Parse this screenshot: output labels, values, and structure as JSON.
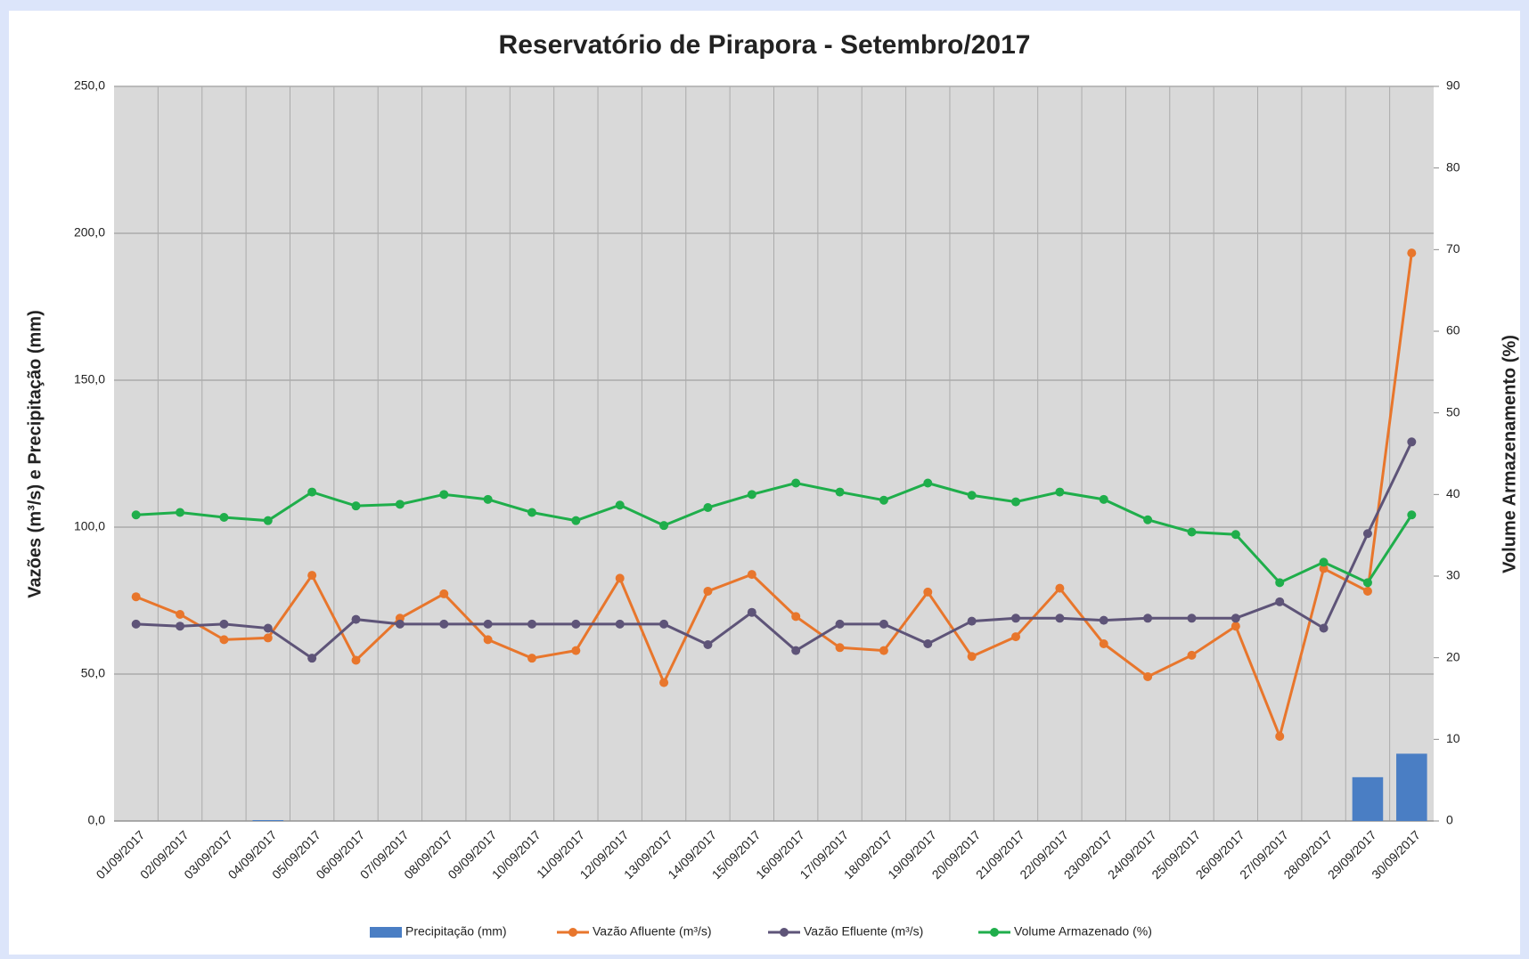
{
  "chart_data": {
    "type": "combo",
    "title": "Reservatório de Pirapora - Setembro/2017",
    "ylabel": "Vazões (m³/s) e Precipitação (mm)",
    "y2label": "Volume Armazenamento (%)",
    "categories": [
      "01/09/2017",
      "02/09/2017",
      "03/09/2017",
      "04/09/2017",
      "05/09/2017",
      "06/09/2017",
      "07/09/2017",
      "08/09/2017",
      "09/09/2017",
      "10/09/2017",
      "11/09/2017",
      "12/09/2017",
      "13/09/2017",
      "14/09/2017",
      "15/09/2017",
      "16/09/2017",
      "17/09/2017",
      "18/09/2017",
      "19/09/2017",
      "20/09/2017",
      "21/09/2017",
      "22/09/2017",
      "23/09/2017",
      "24/09/2017",
      "25/09/2017",
      "26/09/2017",
      "27/09/2017",
      "28/09/2017",
      "29/09/2017",
      "30/09/2017"
    ],
    "series": [
      {
        "name": "Precipitação (mm)",
        "type": "bar",
        "color": "#4a7ec4",
        "values": [
          0,
          0,
          0,
          0.3,
          0,
          0,
          0,
          0,
          0,
          0,
          0,
          0,
          0,
          0,
          0,
          0,
          0,
          0,
          0,
          0,
          0,
          0,
          0,
          0,
          0,
          0,
          0,
          0,
          14.9,
          22.9
        ]
      },
      {
        "name": "Vazão Afluente (m³/s)",
        "type": "line",
        "color": "#e8762c",
        "values": [
          76.3,
          70.3,
          61.7,
          62.3,
          83.6,
          54.7,
          69.0,
          77.3,
          61.7,
          55.4,
          58.0,
          82.6,
          47.1,
          78.2,
          83.9,
          69.6,
          59.0,
          58.0,
          77.9,
          56.0,
          62.7,
          79.2,
          60.3,
          49.1,
          56.4,
          66.3,
          28.8,
          85.9,
          78.2,
          193.3
        ]
      },
      {
        "name": "Vazão Efluente (m³/s)",
        "type": "line",
        "color": "#5e5478",
        "values": [
          67.0,
          66.3,
          67.0,
          65.6,
          55.4,
          68.6,
          67.0,
          67.0,
          67.0,
          67.0,
          67.0,
          67.0,
          67.0,
          60.0,
          71.0,
          58.0,
          67.0,
          67.0,
          60.3,
          68.0,
          69.0,
          69.0,
          68.3,
          69.0,
          69.0,
          69.0,
          74.6,
          65.6,
          97.8,
          129.0
        ]
      },
      {
        "name": "Volume Armazenado (%)",
        "type": "line",
        "axis": "y2",
        "color": "#1fae4b",
        "values": [
          37.5,
          37.8,
          37.2,
          36.8,
          40.3,
          38.6,
          38.8,
          40.0,
          39.4,
          37.8,
          36.8,
          38.7,
          36.2,
          38.4,
          40.0,
          41.4,
          40.3,
          39.3,
          41.4,
          39.9,
          39.1,
          40.3,
          39.4,
          36.9,
          35.4,
          35.1,
          29.2,
          31.7,
          29.2,
          37.5
        ]
      }
    ],
    "ylim": [
      0,
      250
    ],
    "yticks": [
      {
        "value": 0,
        "label": "0,0"
      },
      {
        "value": 50,
        "label": "50,0"
      },
      {
        "value": 100,
        "label": "100,0"
      },
      {
        "value": 150,
        "label": "150,0"
      },
      {
        "value": 200,
        "label": "200,0"
      },
      {
        "value": 250,
        "label": "250,0"
      }
    ],
    "y2lim": [
      0,
      90
    ],
    "y2ticks": [
      0,
      10,
      20,
      30,
      40,
      50,
      60,
      70,
      80,
      90
    ],
    "grid": true,
    "legend": "bottom"
  }
}
